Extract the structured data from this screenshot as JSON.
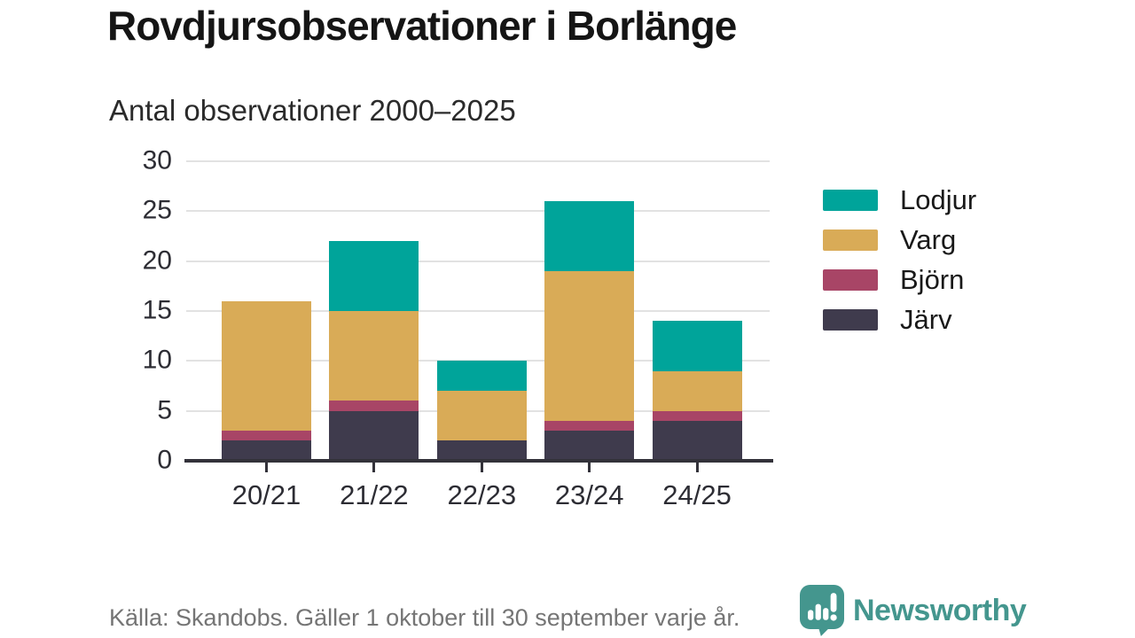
{
  "header": {
    "title": "Rovdjursobservationer i Borlänge",
    "subtitle": "Antal observationer 2000–2025"
  },
  "chart_data": {
    "type": "bar",
    "stacked": true,
    "title": "Rovdjursobservationer i Borlänge",
    "subtitle": "Antal observationer 2000–2025",
    "categories": [
      "20/21",
      "21/22",
      "22/23",
      "23/24",
      "24/25"
    ],
    "series": [
      {
        "name": "Järv",
        "key": "jarv",
        "color": "#3f3b4d",
        "values": [
          2,
          5,
          2,
          3,
          4
        ]
      },
      {
        "name": "Björn",
        "key": "bjorn",
        "color": "#a84566",
        "values": [
          1,
          1,
          0,
          1,
          1
        ]
      },
      {
        "name": "Varg",
        "key": "varg",
        "color": "#d9ab57",
        "values": [
          13,
          9,
          5,
          15,
          4
        ]
      },
      {
        "name": "Lodjur",
        "key": "lodjur",
        "color": "#00a49a",
        "values": [
          0,
          7,
          3,
          7,
          5
        ]
      }
    ],
    "stack_totals": [
      16,
      22,
      10,
      26,
      14
    ],
    "stack_order_bottom_to_top": [
      "Järv",
      "Björn",
      "Varg",
      "Lodjur"
    ],
    "legend_order": [
      "Lodjur",
      "Varg",
      "Björn",
      "Järv"
    ],
    "legend_position": "right",
    "ylim": [
      0,
      30
    ],
    "yticks": [
      0,
      5,
      10,
      15,
      20,
      25,
      30
    ],
    "grid": "horizontal",
    "xlabel": "",
    "ylabel": ""
  },
  "footer": {
    "source": "Källa: Skandobs. Gäller 1 oktober till 30 september varje år.",
    "brand": "Newsworthy",
    "brand_color": "#44968e",
    "logo_icon": "bar-chart-speech-bubble"
  }
}
